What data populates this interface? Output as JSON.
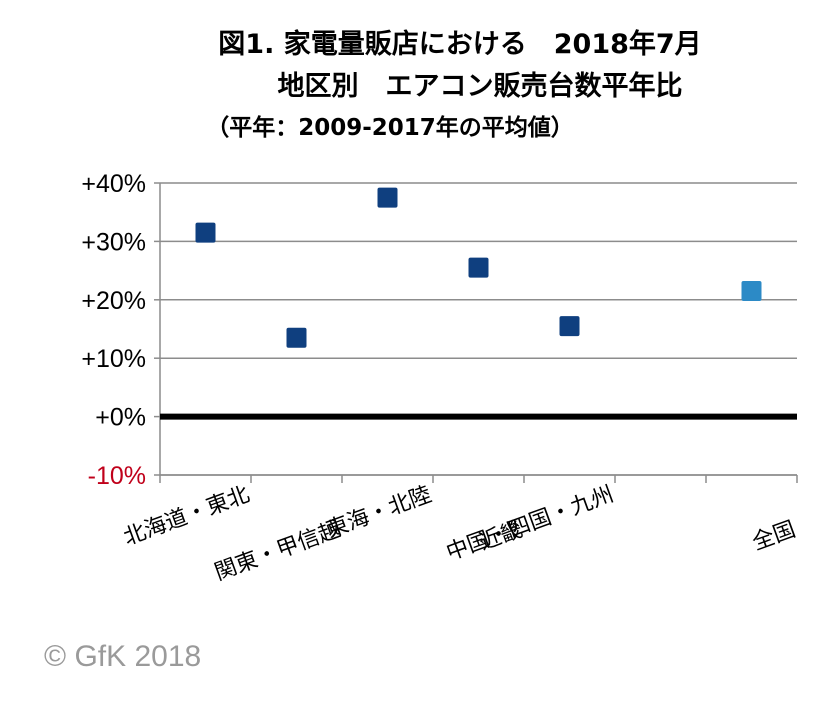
{
  "chart_data": {
    "type": "scatter",
    "title_lines": [
      "図1. 家電量販店における　2018年7月",
      "地区別　エアコン販売台数平年比",
      "（平年：2009-2017年の平均値）"
    ],
    "categories": [
      "北海道・東北",
      "関東・甲信越",
      "東海・北陸",
      "近畿",
      "中国・四国・九州",
      "全国"
    ],
    "values": [
      31.5,
      13.5,
      37.5,
      25.5,
      15.5,
      21.5
    ],
    "point_colors": [
      "#0f3f7f",
      "#0f3f7f",
      "#0f3f7f",
      "#0f3f7f",
      "#0f3f7f",
      "#2c8ac6"
    ],
    "y_ticks": [
      {
        "value": 40,
        "label": "+40%"
      },
      {
        "value": 30,
        "label": "+30%"
      },
      {
        "value": 20,
        "label": "+20%"
      },
      {
        "value": 10,
        "label": "+10%"
      },
      {
        "value": 0,
        "label": "+0%"
      },
      {
        "value": -10,
        "label": "-10%"
      }
    ],
    "negative_tick_color": "#c0001a",
    "ylim": [
      -10,
      40
    ],
    "grid": true,
    "baseline_value": 0
  },
  "copyright": "© GfK 2018"
}
